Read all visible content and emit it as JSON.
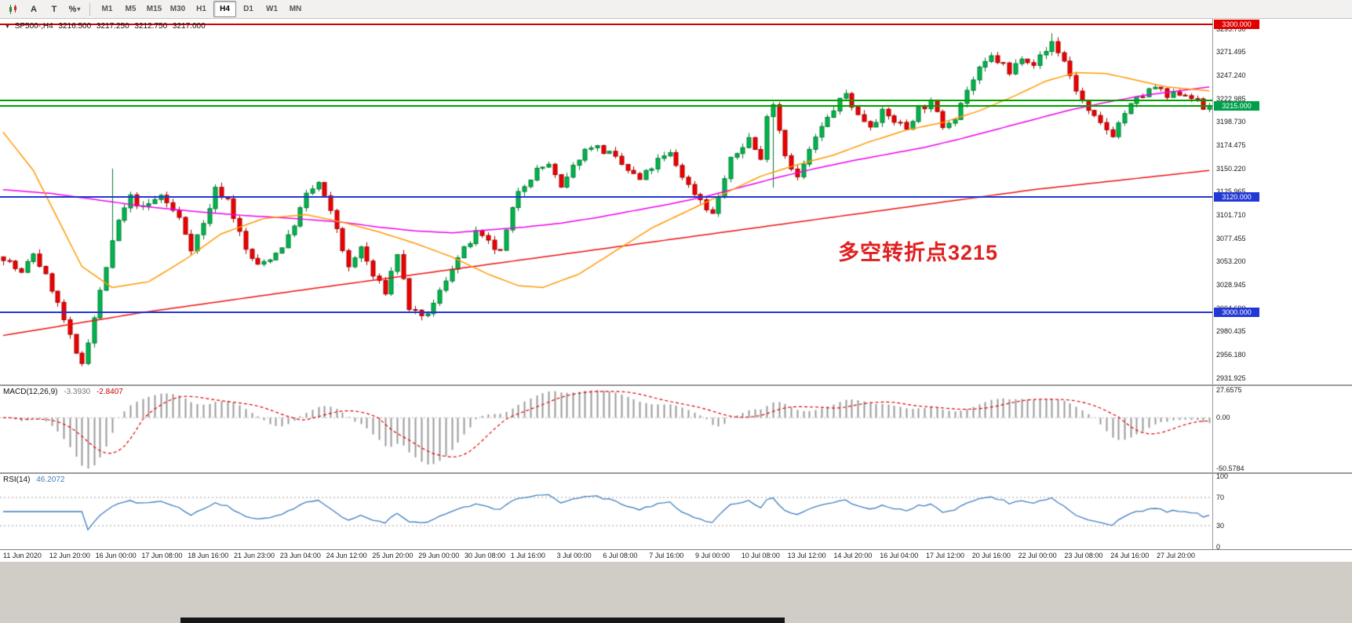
{
  "toolbar": {
    "tools": [
      {
        "name": "chart-style",
        "label": ""
      },
      {
        "name": "letter-a-tool",
        "label": "A"
      },
      {
        "name": "text-tool",
        "label": "T"
      },
      {
        "name": "percent-tool",
        "label": "%"
      }
    ],
    "timeframes": [
      "M1",
      "M5",
      "M15",
      "M30",
      "H1",
      "H4",
      "D1",
      "W1",
      "MN"
    ],
    "active_timeframe": "H4"
  },
  "header": {
    "symbol": "SP500-,H4",
    "open": "3216.500",
    "high": "3217.250",
    "low": "3212.750",
    "close": "3217.000"
  },
  "annotation": {
    "text": "多空转折点3215",
    "color": "#e02020"
  },
  "colors": {
    "bull": "#00b64e",
    "bull_stroke": "#007a30",
    "bear": "#f20000",
    "bear_stroke": "#a00000",
    "ma_fast_orange": "#ff9900",
    "ma_mid_magenta": "#ee00ee",
    "ma_slow_red": "#ee1111",
    "macd_hist": "#9a9a9a",
    "macd_signal": "#e00000",
    "rsi_line": "#3f7fbf"
  },
  "chart_data": {
    "type": "candlestick",
    "symbol": "SP500-",
    "timeframe": "H4",
    "ohlc_display": {
      "open": 3216.5,
      "high": 3217.25,
      "low": 3212.75,
      "close": 3217.0
    },
    "price_range": {
      "top": 3306.0,
      "bottom": 2925.0
    },
    "y_ticks": [
      3295.75,
      3271.495,
      3247.24,
      3222.985,
      3198.73,
      3174.475,
      3150.22,
      3125.965,
      3101.71,
      3077.455,
      3053.2,
      3028.945,
      3004.69,
      2980.435,
      2956.18,
      2931.925
    ],
    "x_labels": [
      "11 Jun 2020",
      "12 Jun 20:00",
      "16 Jun 00:00",
      "17 Jun 08:00",
      "18 Jun 16:00",
      "21 Jun 23:00",
      "23 Jun 04:00",
      "24 Jun 12:00",
      "25 Jun 20:00",
      "29 Jun 00:00",
      "30 Jun 08:00",
      "1 Jul 16:00",
      "3 Jul 00:00",
      "6 Jul 08:00",
      "7 Jul 16:00",
      "9 Jul 00:00",
      "10 Jul 08:00",
      "13 Jul 12:00",
      "14 Jul 20:00",
      "16 Jul 04:00",
      "17 Jul 12:00",
      "20 Jul 16:00",
      "22 Jul 00:00",
      "23 Jul 08:00",
      "24 Jul 16:00",
      "27 Jul 20:00"
    ],
    "levels": [
      {
        "price": 3300.0,
        "line_color": "#d40000",
        "thickness": 2,
        "label": "3300.000",
        "badge_color": "#e00000"
      },
      {
        "price": 3221.0,
        "line_color": "#00a000",
        "thickness": 2
      },
      {
        "price": 3215.0,
        "line_color": "#00a000",
        "thickness": 2,
        "label": "3215.000",
        "badge_color": "#00a04a"
      },
      {
        "price": 3120.0,
        "line_color": "#2238d4",
        "thickness": 2,
        "label": "3120.000",
        "badge_color": "#2238d4"
      },
      {
        "price": 3000.0,
        "line_color": "#2238d4",
        "thickness": 2,
        "label": "3000.000",
        "badge_color": "#2238d4"
      }
    ],
    "candles_n": 200,
    "seed": 7,
    "noise_amp": 4,
    "wick_amp": 5,
    "close_path_anchors": [
      [
        0,
        3058
      ],
      [
        3,
        3040
      ],
      [
        5,
        3062
      ],
      [
        8,
        3025
      ],
      [
        10,
        2992
      ],
      [
        12,
        2955
      ],
      [
        13,
        2948
      ],
      [
        15,
        2995
      ],
      [
        17,
        3048
      ],
      [
        19,
        3095
      ],
      [
        21,
        3120
      ],
      [
        23,
        3108
      ],
      [
        26,
        3122
      ],
      [
        29,
        3098
      ],
      [
        31,
        3068
      ],
      [
        33,
        3092
      ],
      [
        35,
        3128
      ],
      [
        37,
        3118
      ],
      [
        40,
        3065
      ],
      [
        42,
        3048
      ],
      [
        45,
        3062
      ],
      [
        47,
        3078
      ],
      [
        50,
        3122
      ],
      [
        52,
        3135
      ],
      [
        55,
        3088
      ],
      [
        57,
        3045
      ],
      [
        59,
        3068
      ],
      [
        61,
        3038
      ],
      [
        63,
        3022
      ],
      [
        65,
        3062
      ],
      [
        67,
        3005
      ],
      [
        69,
        2993
      ],
      [
        71,
        3008
      ],
      [
        74,
        3048
      ],
      [
        78,
        3082
      ],
      [
        82,
        3062
      ],
      [
        85,
        3128
      ],
      [
        88,
        3148
      ],
      [
        90,
        3155
      ],
      [
        92,
        3128
      ],
      [
        95,
        3162
      ],
      [
        97,
        3175
      ],
      [
        100,
        3165
      ],
      [
        103,
        3148
      ],
      [
        105,
        3138
      ],
      [
        108,
        3158
      ],
      [
        110,
        3165
      ],
      [
        113,
        3132
      ],
      [
        115,
        3118
      ],
      [
        117,
        3102
      ],
      [
        120,
        3158
      ],
      [
        123,
        3182
      ],
      [
        125,
        3158
      ],
      [
        126,
        3208
      ],
      [
        127,
        3218
      ],
      [
        129,
        3165
      ],
      [
        131,
        3140
      ],
      [
        134,
        3182
      ],
      [
        137,
        3212
      ],
      [
        139,
        3228
      ],
      [
        141,
        3205
      ],
      [
        143,
        3196
      ],
      [
        145,
        3208
      ],
      [
        147,
        3200
      ],
      [
        149,
        3192
      ],
      [
        151,
        3213
      ],
      [
        153,
        3218
      ],
      [
        155,
        3195
      ],
      [
        157,
        3205
      ],
      [
        159,
        3232
      ],
      [
        161,
        3252
      ],
      [
        163,
        3266
      ],
      [
        165,
        3258
      ],
      [
        166,
        3248
      ],
      [
        168,
        3268
      ],
      [
        170,
        3260
      ],
      [
        172,
        3272
      ],
      [
        173,
        3282
      ],
      [
        175,
        3262
      ],
      [
        177,
        3232
      ],
      [
        179,
        3208
      ],
      [
        181,
        3196
      ],
      [
        183,
        3186
      ],
      [
        185,
        3208
      ],
      [
        187,
        3222
      ],
      [
        190,
        3235
      ],
      [
        192,
        3224
      ],
      [
        194,
        3229
      ],
      [
        196,
        3226
      ],
      [
        198,
        3212
      ],
      [
        199,
        3217
      ]
    ],
    "wick_overrides": [
      [
        13,
        "l",
        2944
      ],
      [
        18,
        "h",
        3150
      ],
      [
        127,
        "l",
        3130
      ],
      [
        173,
        "h",
        3291
      ]
    ],
    "ma_orange_anchors": [
      [
        0,
        3188
      ],
      [
        5,
        3148
      ],
      [
        9,
        3098
      ],
      [
        13,
        3048
      ],
      [
        18,
        3026
      ],
      [
        24,
        3032
      ],
      [
        30,
        3055
      ],
      [
        36,
        3082
      ],
      [
        43,
        3098
      ],
      [
        50,
        3102
      ],
      [
        56,
        3094
      ],
      [
        62,
        3084
      ],
      [
        68,
        3072
      ],
      [
        74,
        3058
      ],
      [
        80,
        3040
      ],
      [
        85,
        3028
      ],
      [
        89,
        3026
      ],
      [
        95,
        3040
      ],
      [
        101,
        3064
      ],
      [
        107,
        3088
      ],
      [
        113,
        3106
      ],
      [
        119,
        3124
      ],
      [
        125,
        3142
      ],
      [
        131,
        3154
      ],
      [
        137,
        3164
      ],
      [
        143,
        3178
      ],
      [
        149,
        3190
      ],
      [
        155,
        3198
      ],
      [
        161,
        3210
      ],
      [
        167,
        3226
      ],
      [
        172,
        3241
      ],
      [
        177,
        3250
      ],
      [
        182,
        3249
      ],
      [
        187,
        3242
      ],
      [
        192,
        3235
      ],
      [
        199,
        3231
      ]
    ],
    "ma_magenta_anchors": [
      [
        0,
        3128
      ],
      [
        8,
        3124
      ],
      [
        16,
        3117
      ],
      [
        24,
        3110
      ],
      [
        32,
        3105
      ],
      [
        40,
        3101
      ],
      [
        48,
        3098
      ],
      [
        56,
        3094
      ],
      [
        62,
        3089
      ],
      [
        68,
        3085
      ],
      [
        74,
        3083
      ],
      [
        80,
        3086
      ],
      [
        86,
        3089
      ],
      [
        92,
        3093
      ],
      [
        98,
        3099
      ],
      [
        104,
        3106
      ],
      [
        110,
        3113
      ],
      [
        116,
        3121
      ],
      [
        122,
        3131
      ],
      [
        128,
        3141
      ],
      [
        134,
        3150
      ],
      [
        140,
        3158
      ],
      [
        146,
        3165
      ],
      [
        152,
        3172
      ],
      [
        158,
        3181
      ],
      [
        164,
        3191
      ],
      [
        170,
        3201
      ],
      [
        176,
        3211
      ],
      [
        182,
        3219
      ],
      [
        188,
        3226
      ],
      [
        194,
        3231
      ],
      [
        199,
        3235
      ]
    ],
    "ma_red_anchors": [
      [
        0,
        2976
      ],
      [
        23,
        3000
      ],
      [
        50,
        3024
      ],
      [
        80,
        3050
      ],
      [
        110,
        3076
      ],
      [
        140,
        3102
      ],
      [
        170,
        3128
      ],
      [
        199,
        3148
      ]
    ],
    "macd": {
      "label": "MACD(12,26,9)",
      "value_main": "-3.3930",
      "value_signal": "-2.8407",
      "params": {
        "fast": 12,
        "slow": 26,
        "signal": 9
      },
      "ticks": [
        {
          "value": 27.6575,
          "label": "27.6575"
        },
        {
          "value": 0,
          "label": "0.00"
        },
        {
          "value": -50.5784,
          "label": "-50.5784"
        }
      ]
    },
    "rsi": {
      "label": "RSI(14)",
      "value": "46.2072",
      "period": 14,
      "levels": [
        70,
        30
      ],
      "ticks": [
        {
          "value": 100,
          "label": "100"
        },
        {
          "value": 70,
          "label": "70"
        },
        {
          "value": 30,
          "label": "30"
        },
        {
          "value": 0,
          "label": "0"
        }
      ]
    }
  }
}
